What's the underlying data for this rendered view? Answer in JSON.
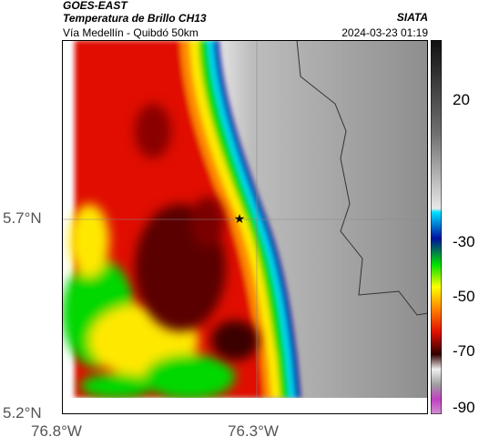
{
  "header": {
    "satellite": "GOES-EAST",
    "product": "Temperatura de Brillo CH13",
    "region": "Vía Medellín - Quibdó 50km",
    "agency": "SIATA",
    "datetime": "2024-03-23 01:19"
  },
  "axes": {
    "y_ticks": [
      "5.7°N",
      "5.2°N"
    ],
    "x_ticks": [
      "76.8°W",
      "76.3°W"
    ]
  },
  "colorbar": {
    "ticks": [
      "20",
      "-30",
      "-50",
      "-70",
      "-90"
    ],
    "colors": {
      "cold_magenta": "#c040c0",
      "white": "#f0f0f0",
      "dark_red": "#5a0000",
      "red": "#e01000",
      "orange": "#ff8000",
      "yellow": "#ffff00",
      "green": "#00e000",
      "blue": "#0020a0",
      "cyan": "#00d0ff",
      "warm_gray": "#9a9a9a",
      "dark_gray": "#202020"
    }
  },
  "map": {
    "marker_icon": "star-icon"
  }
}
